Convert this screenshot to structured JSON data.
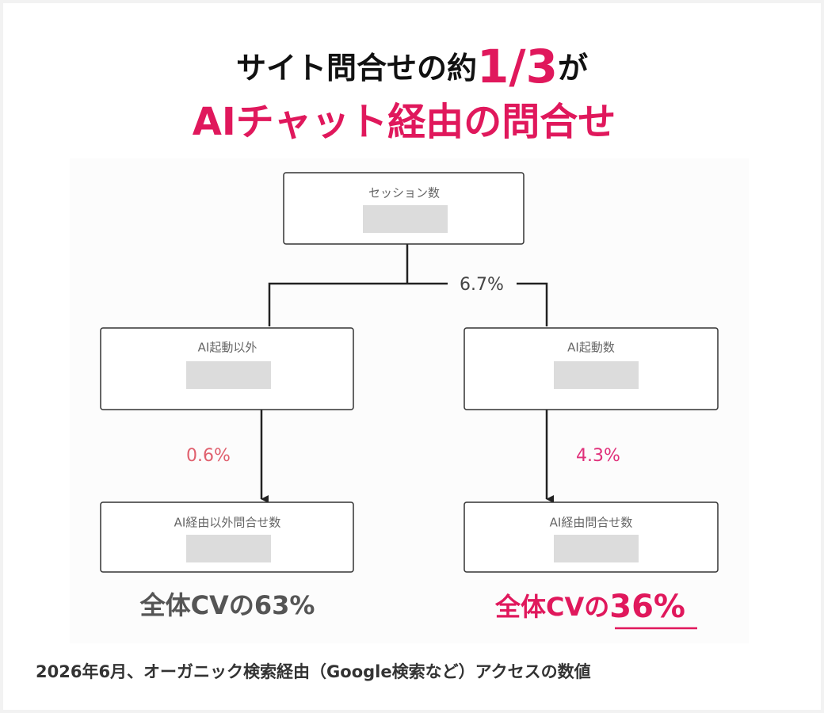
{
  "title": {
    "line1": {
      "before": "サイト問合せの約",
      "highlight": "1/3",
      "after": "が"
    },
    "line2": "AIチャット経由の問合せ"
  },
  "nodes": [
    {
      "label": "セッション数"
    },
    {
      "label": "AI起動以外"
    },
    {
      "label": "AI起動数"
    },
    {
      "label": "AI経由以外問合せ数"
    },
    {
      "label": "AI経由問合せ数"
    }
  ],
  "edges": [
    {
      "label": "6.7%"
    },
    {
      "label": "0.6%"
    },
    {
      "label": "4.3%"
    }
  ],
  "results": [
    {
      "text": "全体CVの63%"
    },
    {
      "before": "全体CVの",
      "highlight": "36%"
    }
  ],
  "footnote": "2026年6月、オーガニック検索経由（Google検索など）アクセスの数値"
}
